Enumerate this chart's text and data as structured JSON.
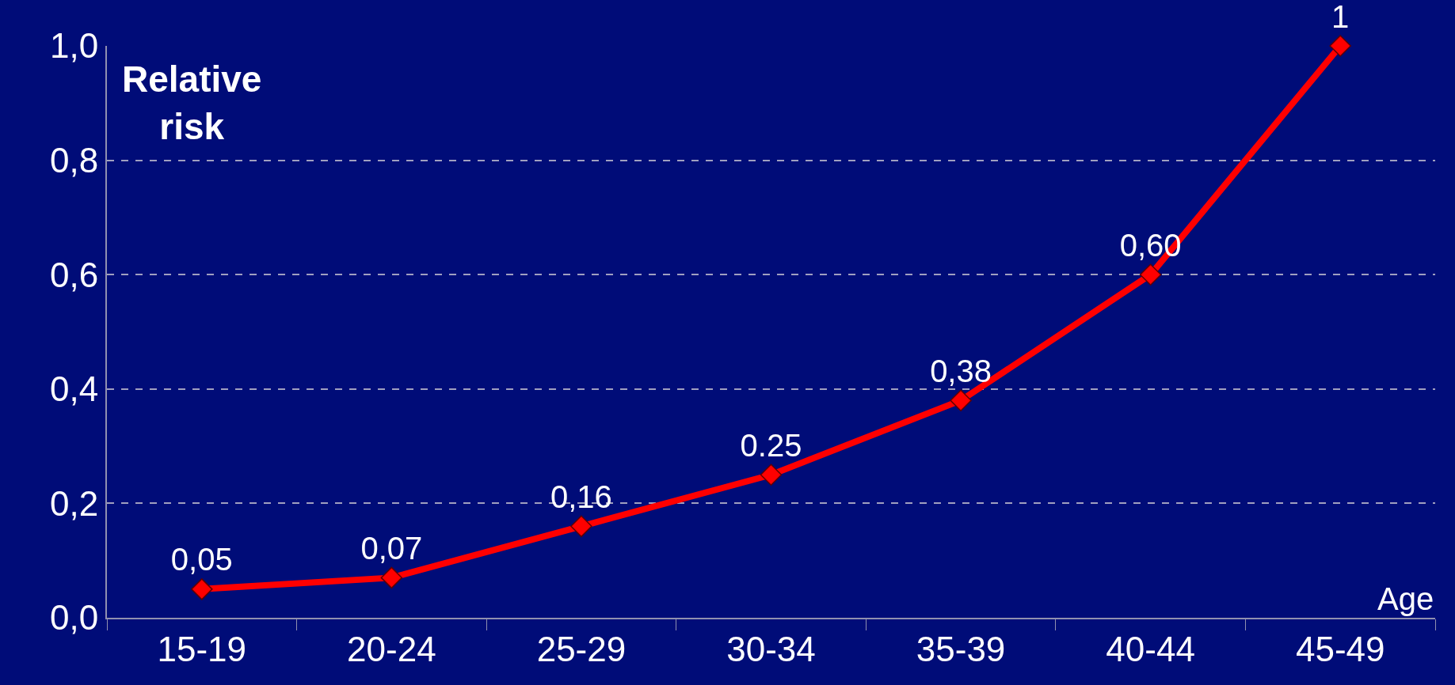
{
  "chart_data": {
    "type": "line",
    "ylabel": "Relative\nrisk",
    "xlabel": "Age",
    "categories": [
      "15-19",
      "20-24",
      "25-29",
      "30-34",
      "35-39",
      "40-44",
      "45-49"
    ],
    "series": [
      {
        "color": "#ff0000",
        "values": [
          0.05,
          0.07,
          0.16,
          0.25,
          0.38,
          0.6,
          1
        ],
        "value_labels": [
          "0,05",
          "0,07",
          "0,16",
          "0.25",
          "0,38",
          "0,60",
          "1"
        ]
      }
    ],
    "ylim": [
      0,
      1
    ],
    "yticks": [
      {
        "value": 0,
        "label": "0,0"
      },
      {
        "value": 0.2,
        "label": "0,2"
      },
      {
        "value": 0.4,
        "label": "0,4"
      },
      {
        "value": 0.6,
        "label": "0,6"
      },
      {
        "value": 0.8,
        "label": "0,8"
      },
      {
        "value": 1,
        "label": "1,0"
      }
    ],
    "grid": "y",
    "marker": "diamond",
    "line_style": "solid",
    "legend": false
  }
}
